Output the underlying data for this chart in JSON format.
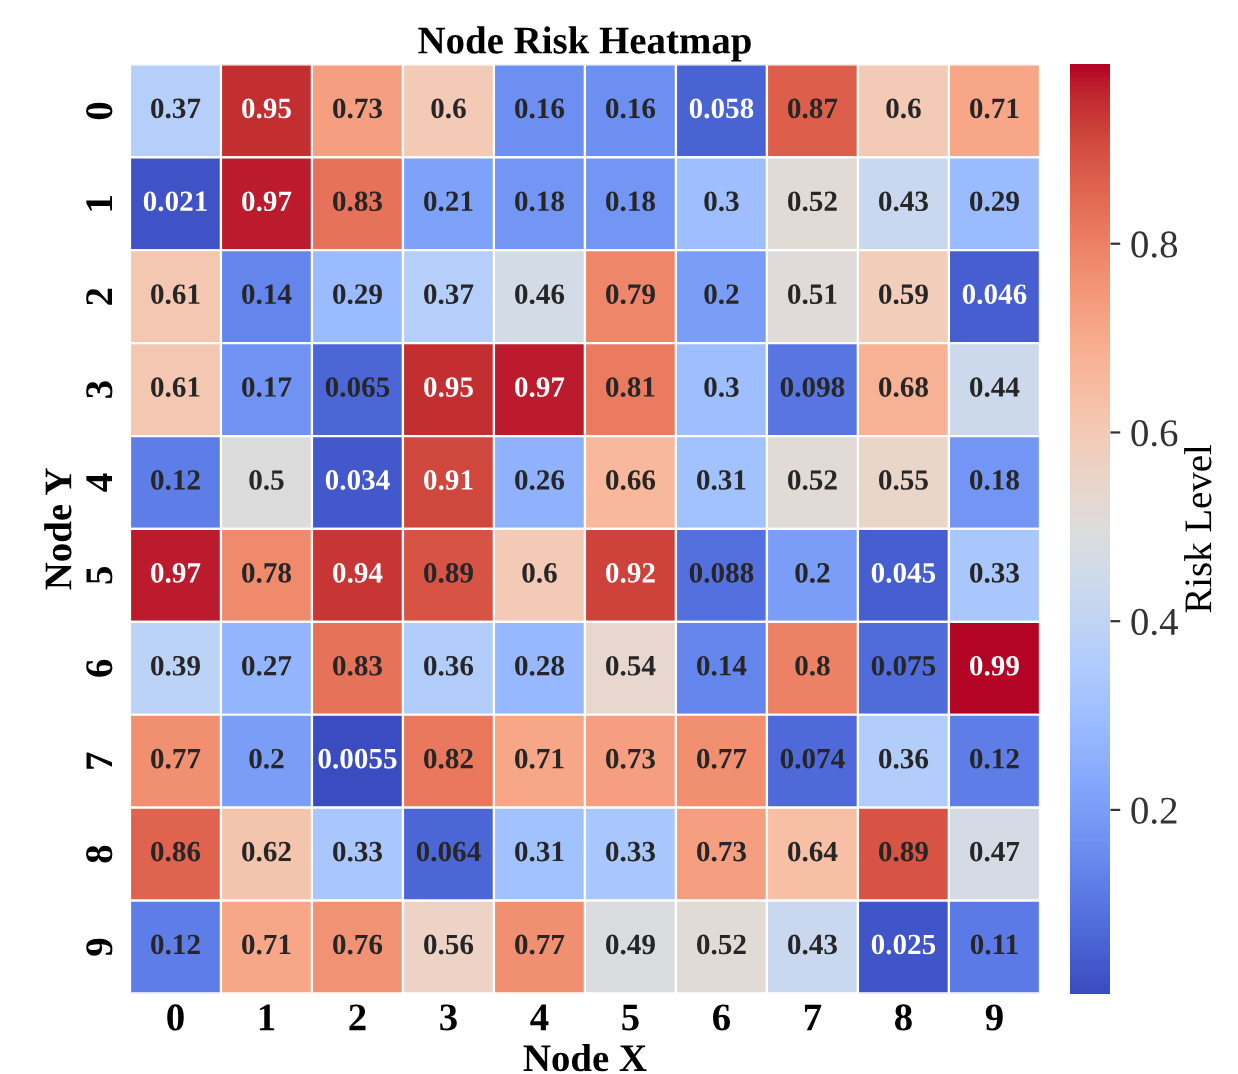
{
  "chart_data": {
    "type": "heatmap",
    "title": "Node Risk Heatmap",
    "xlabel": "Node X",
    "ylabel": "Node Y",
    "clabel": "Risk Level",
    "categories": [
      "0",
      "1",
      "2",
      "3",
      "4",
      "5",
      "6",
      "7",
      "8",
      "9"
    ],
    "y_categories": [
      "0",
      "1",
      "2",
      "3",
      "4",
      "5",
      "6",
      "7",
      "8",
      "9"
    ],
    "cells": [
      [
        0.37,
        0.95,
        0.73,
        0.6,
        0.16,
        0.16,
        0.058,
        0.87,
        0.6,
        0.71
      ],
      [
        0.021,
        0.97,
        0.83,
        0.21,
        0.18,
        0.18,
        0.3,
        0.52,
        0.43,
        0.29
      ],
      [
        0.61,
        0.14,
        0.29,
        0.37,
        0.46,
        0.79,
        0.2,
        0.51,
        0.59,
        0.046
      ],
      [
        0.61,
        0.17,
        0.065,
        0.95,
        0.97,
        0.81,
        0.3,
        0.098,
        0.68,
        0.44
      ],
      [
        0.12,
        0.5,
        0.034,
        0.91,
        0.26,
        0.66,
        0.31,
        0.52,
        0.55,
        0.18
      ],
      [
        0.97,
        0.78,
        0.94,
        0.89,
        0.6,
        0.92,
        0.088,
        0.2,
        0.045,
        0.33
      ],
      [
        0.39,
        0.27,
        0.83,
        0.36,
        0.28,
        0.54,
        0.14,
        0.8,
        0.075,
        0.99
      ],
      [
        0.77,
        0.2,
        0.0055,
        0.82,
        0.71,
        0.73,
        0.77,
        0.074,
        0.36,
        0.12
      ],
      [
        0.86,
        0.62,
        0.33,
        0.064,
        0.31,
        0.33,
        0.73,
        0.64,
        0.89,
        0.47
      ],
      [
        0.12,
        0.71,
        0.76,
        0.56,
        0.77,
        0.49,
        0.52,
        0.43,
        0.025,
        0.11
      ]
    ],
    "clim": [
      0.0055,
      0.99
    ],
    "cticks": [
      0.2,
      0.4,
      0.6,
      0.8
    ],
    "data_labels": true
  }
}
